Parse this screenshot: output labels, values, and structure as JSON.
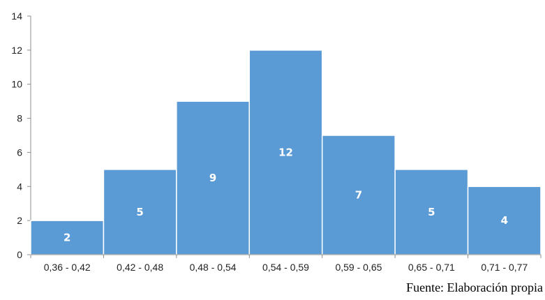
{
  "chart_data": {
    "type": "bar",
    "categories": [
      "0,36 - 0,42",
      "0,42 - 0,48",
      "0,48 - 0,54",
      "0,54 - 0,59",
      "0,59 - 0,65",
      "0,65 - 0,71",
      "0,71 - 0,77"
    ],
    "values": [
      2,
      5,
      9,
      12,
      7,
      5,
      4
    ],
    "data_labels": [
      "2",
      "5",
      "9",
      "12",
      "7",
      "5",
      "4"
    ],
    "ylim": [
      0,
      14
    ],
    "yticks": [
      "0",
      "2",
      "4",
      "6",
      "8",
      "10",
      "12",
      "14"
    ],
    "grid": false,
    "bar_color": "#5b9bd5",
    "title": "",
    "xlabel": "",
    "ylabel": ""
  },
  "source_note": "Fuente: Elaboración propia"
}
